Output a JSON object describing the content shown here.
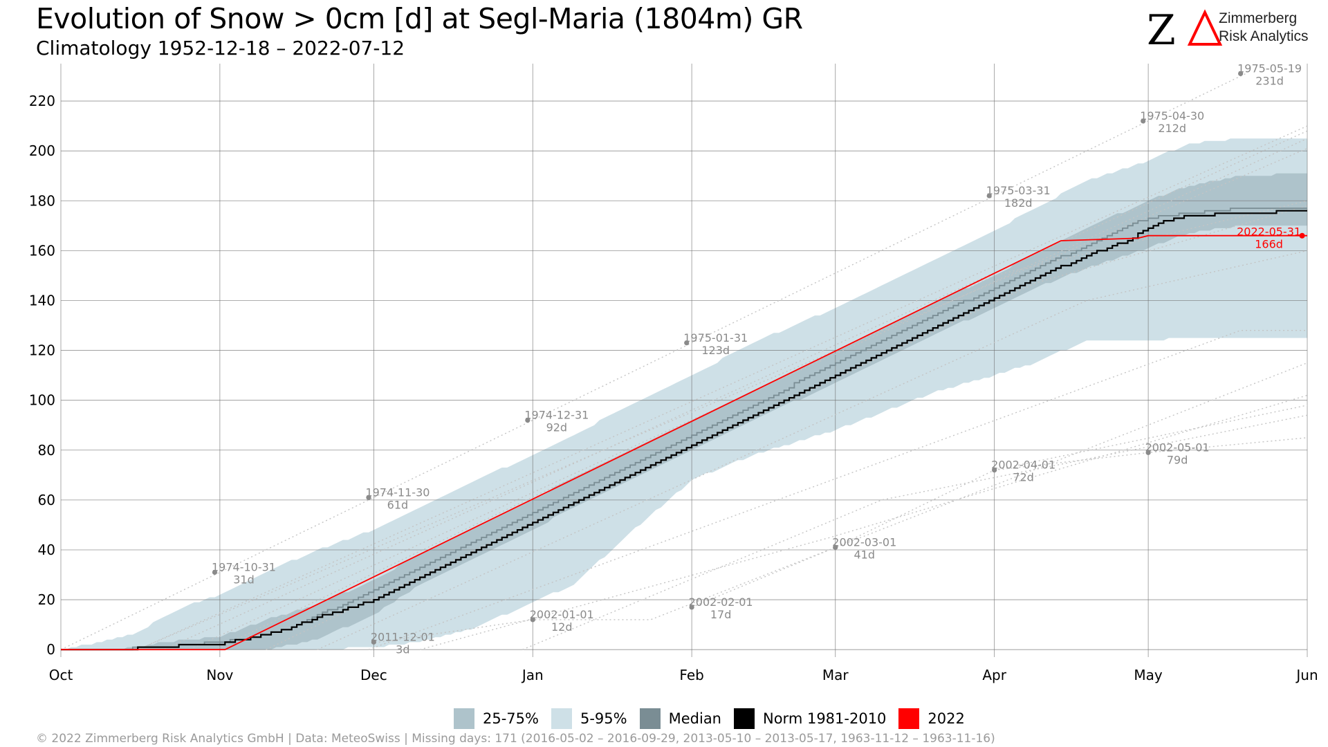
{
  "header": {
    "title": "Evolution of Snow > 0cm [d] at Segl-Maria (1804m) GR",
    "subtitle": "Climatology 1952-12-18 – 2022-07-12"
  },
  "logo": {
    "line1": "Zimmerberg",
    "line2": "Risk Analytics",
    "colors": {
      "z": "#000000",
      "delta": "#ff0000"
    }
  },
  "legend": {
    "items": [
      {
        "label": "25-75%",
        "color": "#aec3cb"
      },
      {
        "label": "5-95%",
        "color": "#cee0e7"
      },
      {
        "label": "Median",
        "color": "#7a8d94"
      },
      {
        "label": "Norm 1981-2010",
        "color": "#000000"
      },
      {
        "label": "2022",
        "color": "#ff0000"
      }
    ]
  },
  "footer": {
    "text": "©  2022 Zimmerberg Risk Analytics GmbH | Data: MeteoSwiss | Missing days: 171 (2016-05-02 – 2016-09-29, 2013-05-10 – 2013-05-17, 1963-11-12 – 1963-11-16)"
  },
  "chart_data": {
    "type": "area",
    "title": "Evolution of Snow > 0cm [d] at Segl-Maria (1804m) GR",
    "subtitle": "Climatology 1952-12-18 – 2022-07-12",
    "xlabel": "",
    "ylabel": "",
    "x_unit": "days since Oct 1",
    "xlim": [
      0,
      243
    ],
    "ylim": [
      -3,
      235
    ],
    "yticks": [
      0,
      20,
      40,
      60,
      80,
      100,
      120,
      140,
      160,
      180,
      200,
      220
    ],
    "xticks": [
      {
        "label": "Oct",
        "day": 0
      },
      {
        "label": "Nov",
        "day": 31
      },
      {
        "label": "Dec",
        "day": 61
      },
      {
        "label": "Jan",
        "day": 92
      },
      {
        "label": "Feb",
        "day": 123
      },
      {
        "label": "Mar",
        "day": 151
      },
      {
        "label": "Apr",
        "day": 182
      },
      {
        "label": "May",
        "day": 212
      },
      {
        "label": "Jun",
        "day": 243
      }
    ],
    "grid": true,
    "legend_position": "bottom",
    "colors": {
      "band_5_95": "#cee0e7",
      "band_25_75": "#aec3cb",
      "median": "#7a8d94",
      "norm": "#000000",
      "current": "#ff0000",
      "annotation": "#8a8a8a",
      "annotation_line": "#c4c4c4"
    },
    "bands": {
      "p5_p95": {
        "x": [
          0,
          5,
          10,
          15,
          20,
          25,
          31,
          40,
          50,
          61,
          70,
          80,
          92,
          100,
          110,
          123,
          135,
          151,
          160,
          170,
          182,
          190,
          200,
          212,
          220,
          230,
          243
        ],
        "low": [
          0,
          0,
          0,
          0,
          0,
          0,
          0,
          0,
          0,
          1,
          3,
          8,
          19,
          26,
          45,
          68,
          78,
          88,
          95,
          103,
          110,
          115,
          124,
          124,
          125,
          125,
          125
        ],
        "high": [
          0,
          2,
          4,
          7,
          13,
          18,
          22,
          31,
          40,
          48,
          57,
          67,
          78,
          86,
          97,
          110,
          123,
          137,
          146,
          156,
          168,
          177,
          188,
          196,
          203,
          205,
          205
        ]
      },
      "p25_p75": {
        "x": [
          0,
          10,
          15,
          20,
          25,
          31,
          40,
          50,
          61,
          70,
          80,
          92,
          100,
          110,
          123,
          135,
          151,
          160,
          170,
          182,
          190,
          200,
          212,
          220,
          230,
          243
        ],
        "low": [
          0,
          0,
          0,
          0,
          0,
          0,
          0,
          4,
          14,
          26,
          36,
          48,
          57,
          67,
          80,
          92,
          107,
          116,
          126,
          137,
          145,
          153,
          161,
          167,
          170,
          170
        ],
        "high": [
          0,
          0,
          1,
          3,
          4,
          5,
          12,
          18,
          28,
          38,
          48,
          60,
          69,
          79,
          92,
          104,
          120,
          129,
          139,
          150,
          159,
          169,
          180,
          186,
          190,
          191
        ]
      }
    },
    "series": [
      {
        "name": "Median",
        "x": [
          0,
          12,
          15,
          20,
          25,
          31,
          35,
          40,
          45,
          50,
          55,
          61,
          70,
          80,
          92,
          100,
          110,
          123,
          135,
          151,
          160,
          170,
          182,
          190,
          200,
          208,
          212,
          220,
          230,
          243
        ],
        "y": [
          0,
          0,
          1,
          1,
          2,
          3,
          4,
          6,
          9,
          14,
          18,
          24,
          33,
          43,
          55,
          63,
          73,
          86,
          98,
          115,
          124,
          134,
          145,
          153,
          162,
          170,
          173,
          175,
          177,
          177
        ]
      },
      {
        "name": "Norm 1981-2010",
        "x": [
          0,
          14,
          16,
          20,
          25,
          31,
          35,
          40,
          45,
          50,
          55,
          61,
          70,
          80,
          92,
          100,
          110,
          123,
          135,
          151,
          160,
          170,
          182,
          190,
          200,
          208,
          212,
          215,
          220,
          230,
          243
        ],
        "y": [
          0,
          0,
          1,
          1,
          2,
          2,
          4,
          6,
          9,
          13,
          16,
          20,
          29,
          39,
          51,
          59,
          69,
          82,
          94,
          110,
          119,
          129,
          141,
          149,
          158,
          164,
          169,
          172,
          174,
          175,
          176
        ]
      },
      {
        "name": "2022",
        "x": [
          0,
          32,
          195,
          210,
          212,
          243
        ],
        "y": [
          0,
          0,
          164,
          165,
          166,
          166
        ]
      }
    ],
    "annotations": [
      {
        "date": "1974-10-31",
        "value": "31d",
        "x": 30,
        "y": 31
      },
      {
        "date": "1974-11-30",
        "value": "61d",
        "x": 60,
        "y": 61
      },
      {
        "date": "1974-12-31",
        "value": "92d",
        "x": 91,
        "y": 92
      },
      {
        "date": "1975-01-31",
        "value": "123d",
        "x": 122,
        "y": 123
      },
      {
        "date": "1975-03-31",
        "value": "182d",
        "x": 181,
        "y": 182
      },
      {
        "date": "1975-04-30",
        "value": "212d",
        "x": 211,
        "y": 212
      },
      {
        "date": "1975-05-19",
        "value": "231d",
        "x": 230,
        "y": 231
      },
      {
        "date": "2011-12-01",
        "value": "3d",
        "x": 61,
        "y": 3
      },
      {
        "date": "2002-01-01",
        "value": "12d",
        "x": 92,
        "y": 12
      },
      {
        "date": "2002-02-01",
        "value": "17d",
        "x": 123,
        "y": 17
      },
      {
        "date": "2002-03-01",
        "value": "41d",
        "x": 151,
        "y": 41
      },
      {
        "date": "2002-04-01",
        "value": "72d",
        "x": 182,
        "y": 72
      },
      {
        "date": "2002-05-01",
        "value": "79d",
        "x": 212,
        "y": 79
      },
      {
        "date": "2022-05-31",
        "value": "166d",
        "x": 242,
        "y": 166,
        "highlight": true
      }
    ],
    "background_traces": [
      {
        "x": [
          0,
          231
        ],
        "y": [
          0,
          231
        ]
      },
      {
        "x": [
          0,
          15,
          243
        ],
        "y": [
          0,
          0,
          210
        ]
      },
      {
        "x": [
          0,
          20,
          243
        ],
        "y": [
          0,
          0,
          208
        ]
      },
      {
        "x": [
          0,
          25,
          243
        ],
        "y": [
          0,
          0,
          205
        ]
      },
      {
        "x": [
          15,
          243
        ],
        "y": [
          0,
          201
        ]
      },
      {
        "x": [
          30,
          182,
          243
        ],
        "y": [
          0,
          150,
          180
        ]
      },
      {
        "x": [
          40,
          190,
          243
        ],
        "y": [
          0,
          147,
          178
        ]
      },
      {
        "x": [
          50,
          200,
          243
        ],
        "y": [
          0,
          140,
          160
        ]
      },
      {
        "x": [
          60,
          230,
          243
        ],
        "y": [
          0,
          128,
          128
        ]
      },
      {
        "x": [
          62,
          92,
          115,
          243
        ],
        "y": [
          3,
          12,
          12,
          115
        ]
      },
      {
        "x": [
          70,
          150,
          243
        ],
        "y": [
          0,
          45,
          102
        ]
      },
      {
        "x": [
          123,
          151,
          182,
          243
        ],
        "y": [
          17,
          41,
          72,
          98
        ]
      },
      {
        "x": [
          182,
          212,
          243
        ],
        "y": [
          72,
          79,
          85
        ]
      },
      {
        "x": [
          90,
          160,
          243
        ],
        "y": [
          0,
          60,
          94
        ]
      }
    ]
  }
}
